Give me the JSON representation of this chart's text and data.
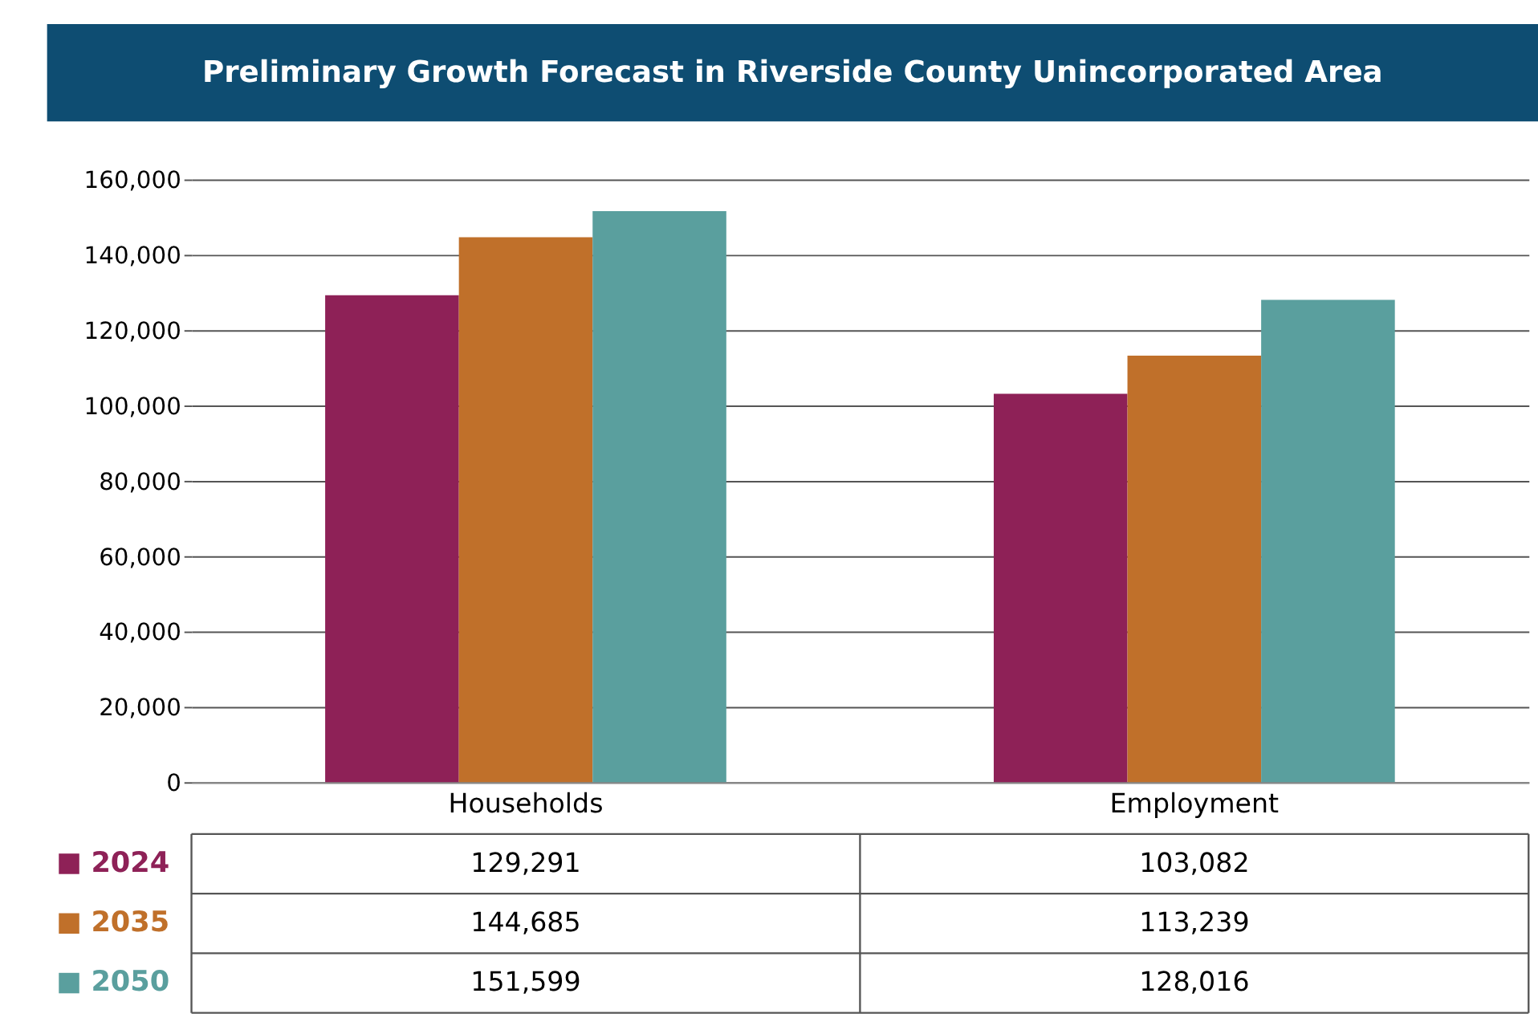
{
  "chart_data": {
    "type": "bar",
    "title": "Preliminary Growth Forecast in Riverside County Unincorporated Area",
    "categories": [
      "Households",
      "Employment"
    ],
    "series": [
      {
        "name": "2024",
        "color": "#8e2157",
        "values": [
          129291,
          103082
        ],
        "value_labels": [
          "129,291",
          "103,082"
        ]
      },
      {
        "name": "2035",
        "color": "#c0702a",
        "values": [
          144685,
          113239
        ],
        "value_labels": [
          "144,685",
          "113,239"
        ]
      },
      {
        "name": "2050",
        "color": "#5a9f9e",
        "values": [
          151599,
          128016
        ],
        "value_labels": [
          "151,599",
          "128,016"
        ]
      }
    ],
    "ylim": [
      0,
      160000
    ],
    "yticks": [
      {
        "value": 0,
        "label": "0"
      },
      {
        "value": 20000,
        "label": "20,000"
      },
      {
        "value": 40000,
        "label": "40,000"
      },
      {
        "value": 60000,
        "label": "60,000"
      },
      {
        "value": 80000,
        "label": "80,000"
      },
      {
        "value": 100000,
        "label": "100,000"
      },
      {
        "value": 120000,
        "label": "120,000"
      },
      {
        "value": 140000,
        "label": "140,000"
      },
      {
        "value": 160000,
        "label": "160,000"
      }
    ],
    "grid": "y",
    "legend": "bottom"
  }
}
